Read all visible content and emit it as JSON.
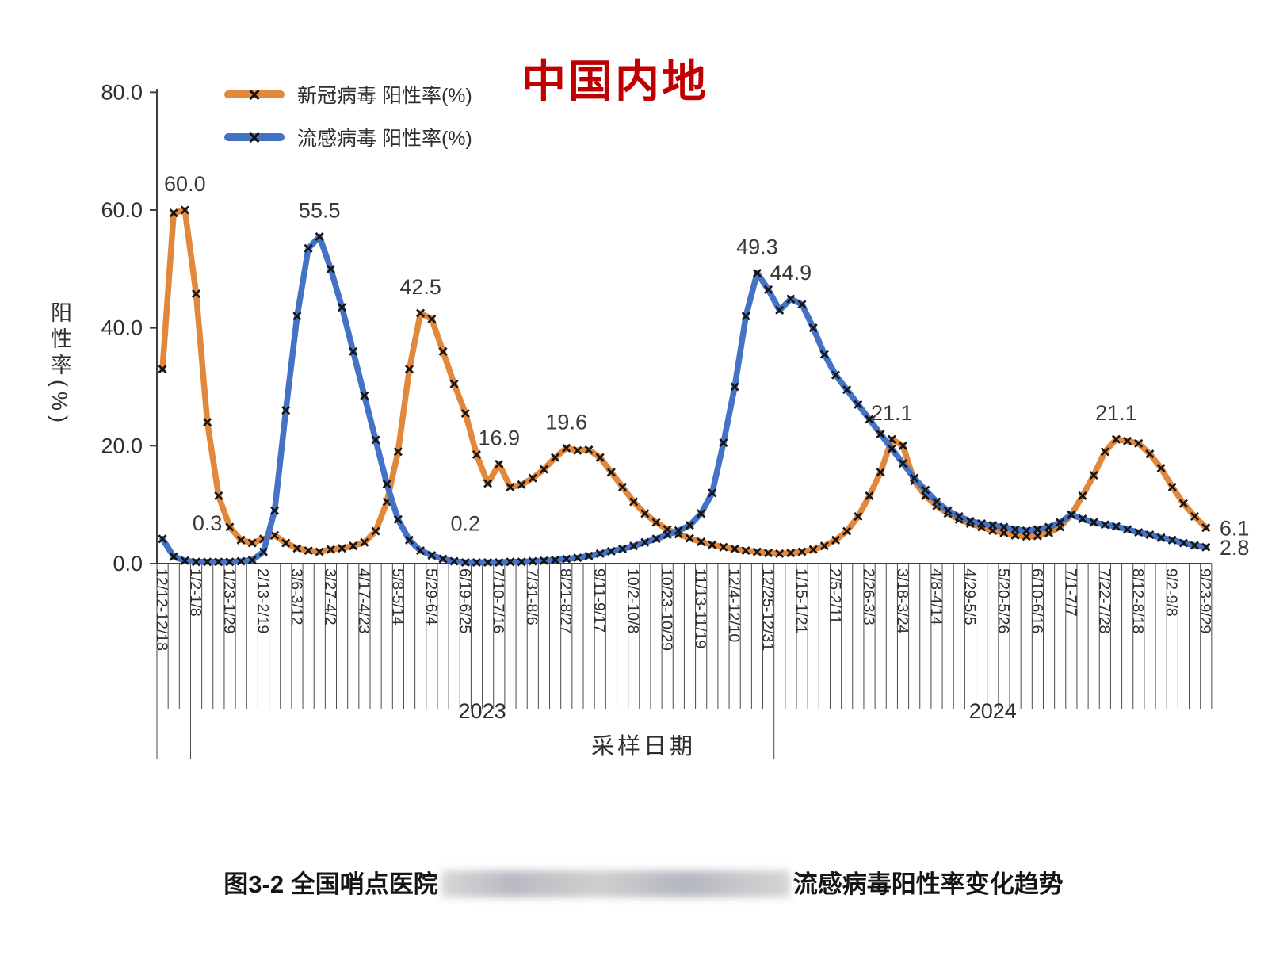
{
  "header": {
    "region_title": "中国内地"
  },
  "legend": [
    {
      "label": "新冠病毒 阳性率(%)",
      "color": "#E2883C"
    },
    {
      "label": "流感病毒 阳性率(%)",
      "color": "#4472C4"
    }
  ],
  "y_axis": {
    "title": "阳性率(%)",
    "ticks": [
      "0.0",
      "20.0",
      "40.0",
      "60.0",
      "80.0"
    ]
  },
  "x_axis": {
    "title": "采样日期",
    "year_left": "2023",
    "year_right": "2024"
  },
  "caption": {
    "prefix": "图3-2 全国哨点医院",
    "suffix": "流感病毒阳性率变化趋势",
    "redacted_middle": true
  },
  "chart_data": {
    "type": "line",
    "title": "中国内地",
    "xlabel": "采样日期",
    "ylabel": "阳性率(%)",
    "ylim": [
      0,
      80
    ],
    "y_ticks": [
      0,
      20,
      40,
      60,
      80
    ],
    "tick_every": 3,
    "x_tick_labels": [
      "12/12-12/18",
      "1/2-1/8",
      "1/23-1/29",
      "2/13-2/19",
      "3/6-3/12",
      "3/27-4/2",
      "4/17-4/23",
      "5/8-5/14",
      "5/29-6/4",
      "6/19-6/25",
      "7/10-7/16",
      "7/31-8/6",
      "8/21-8/27",
      "9/11-9/17",
      "10/2-10/8",
      "10/23-10/29",
      "11/13-11/19",
      "12/4-12/10",
      "12/25-12/31",
      "1/15-1/21",
      "2/5-2/11",
      "2/26-3/3",
      "3/18-3/24",
      "4/8-4/14",
      "4/29-5/5",
      "5/20-5/26",
      "6/10-6/16",
      "7/1-7/7",
      "7/22-7/28",
      "8/12-8/18",
      "9/2-9/8",
      "9/23-9/29"
    ],
    "series": [
      {
        "name": "新冠病毒 阳性率(%)",
        "color": "#E2883C",
        "marker": "x",
        "values": [
          33.0,
          59.5,
          60.0,
          45.8,
          24.0,
          11.5,
          6.2,
          4.0,
          3.5,
          4.2,
          4.8,
          3.5,
          2.6,
          2.2,
          2.0,
          2.4,
          2.6,
          3.0,
          3.6,
          5.5,
          10.5,
          19.0,
          33.0,
          42.5,
          41.5,
          36.0,
          30.5,
          25.5,
          18.5,
          13.6,
          16.9,
          13.0,
          13.4,
          14.5,
          16.0,
          18.0,
          19.6,
          19.2,
          19.3,
          18.0,
          15.5,
          13.0,
          10.5,
          8.5,
          7.0,
          5.8,
          5.0,
          4.3,
          3.7,
          3.2,
          2.8,
          2.5,
          2.2,
          2.0,
          1.8,
          1.7,
          1.8,
          2.0,
          2.4,
          3.0,
          4.0,
          5.5,
          8.0,
          11.5,
          15.5,
          21.1,
          20.0,
          14.0,
          11.5,
          9.8,
          8.5,
          7.5,
          6.8,
          6.2,
          5.6,
          5.2,
          4.8,
          4.6,
          4.7,
          5.2,
          6.2,
          8.3,
          11.5,
          15.0,
          19.0,
          21.1,
          20.8,
          20.4,
          18.6,
          16.2,
          13.0,
          10.2,
          8.0,
          6.1
        ]
      },
      {
        "name": "流感病毒 阳性率(%)",
        "color": "#4472C4",
        "marker": "x",
        "values": [
          4.2,
          1.2,
          0.5,
          0.3,
          0.3,
          0.3,
          0.3,
          0.4,
          0.6,
          2.0,
          9.0,
          26.0,
          42.0,
          53.5,
          55.5,
          50.0,
          43.5,
          36.0,
          28.5,
          21.0,
          13.5,
          7.5,
          4.0,
          2.2,
          1.4,
          0.8,
          0.4,
          0.2,
          0.2,
          0.2,
          0.2,
          0.3,
          0.3,
          0.4,
          0.5,
          0.6,
          0.8,
          1.0,
          1.3,
          1.7,
          2.1,
          2.5,
          3.0,
          3.6,
          4.2,
          4.9,
          5.6,
          6.5,
          8.5,
          12.0,
          20.5,
          30.0,
          42.0,
          49.3,
          46.5,
          43.0,
          44.9,
          44.0,
          40.0,
          35.5,
          32.0,
          29.5,
          27.0,
          24.5,
          22.0,
          19.5,
          17.0,
          14.5,
          12.5,
          10.5,
          9.0,
          8.0,
          7.2,
          6.8,
          6.5,
          6.2,
          5.8,
          5.6,
          5.8,
          6.2,
          7.0,
          8.3,
          7.6,
          7.0,
          6.6,
          6.3,
          5.8,
          5.3,
          4.9,
          4.4,
          4.0,
          3.5,
          3.1,
          2.8
        ]
      }
    ],
    "annotations": [
      {
        "series": 0,
        "week": 2,
        "text": "60.0",
        "placement": "above"
      },
      {
        "series": 1,
        "week": 4,
        "text": "0.3",
        "placement": "above"
      },
      {
        "series": 1,
        "week": 14,
        "text": "55.5",
        "placement": "above"
      },
      {
        "series": 0,
        "week": 23,
        "text": "42.5",
        "placement": "above"
      },
      {
        "series": 0,
        "week": 30,
        "text": "16.9",
        "placement": "above"
      },
      {
        "series": 0,
        "week": 36,
        "text": "19.6",
        "placement": "above"
      },
      {
        "series": 1,
        "week": 27,
        "text": "0.2",
        "placement": "above"
      },
      {
        "series": 1,
        "week": 53,
        "text": "49.3",
        "placement": "above"
      },
      {
        "series": 1,
        "week": 56,
        "text": "44.9",
        "placement": "above"
      },
      {
        "series": 0,
        "week": 65,
        "text": "21.1",
        "placement": "above"
      },
      {
        "series": 0,
        "week": 85,
        "text": "21.1",
        "placement": "above"
      },
      {
        "series": 0,
        "week": 93,
        "text": "6.1",
        "placement": "right"
      },
      {
        "series": 1,
        "week": 93,
        "text": "2.8",
        "placement": "right"
      }
    ],
    "year_labels": [
      {
        "text": "2023",
        "starts_at_week": 3
      },
      {
        "text": "2024",
        "starts_at_week": 55
      }
    ]
  }
}
